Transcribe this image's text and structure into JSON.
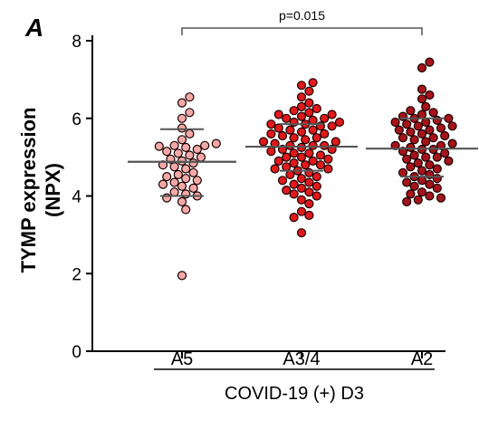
{
  "chart_data": {
    "type": "scatter",
    "panel_label": "A",
    "ylabel_line1": "TYMP expression",
    "ylabel_line2": "(NPX)",
    "xlabel": "COVID-19 (+) D3",
    "ylim": [
      0,
      8
    ],
    "yticks": [
      "0",
      "2",
      "4",
      "6",
      "8"
    ],
    "categories": [
      "A5",
      "A3/4",
      "A2"
    ],
    "significance": {
      "from": "A5",
      "to": "A2",
      "label": "p=0.015"
    },
    "colors": {
      "A5": "#f4a9a8",
      "A3/4": "#e0191c",
      "A2": "#a5141a",
      "line": "#555555"
    },
    "series": [
      {
        "group": "A5",
        "median": 4.88,
        "q1": 4.0,
        "q3": 5.72,
        "values": [
          6.55,
          6.4,
          6.15,
          6.0,
          5.75,
          5.6,
          5.45,
          5.35,
          5.3,
          5.3,
          5.28,
          5.25,
          5.2,
          5.15,
          5.1,
          5.05,
          5.0,
          4.95,
          4.9,
          4.85,
          4.8,
          4.75,
          4.7,
          4.6,
          4.55,
          4.5,
          4.45,
          4.4,
          4.35,
          4.3,
          4.25,
          4.2,
          4.1,
          4.05,
          4.0,
          3.95,
          3.85,
          3.65,
          1.95
        ]
      },
      {
        "group": "A3/4",
        "median": 5.27,
        "q1": 4.65,
        "q3": 5.85,
        "values": [
          6.92,
          6.85,
          6.7,
          6.55,
          6.4,
          6.3,
          6.25,
          6.2,
          6.15,
          6.1,
          6.1,
          6.05,
          6.0,
          6.0,
          5.95,
          5.9,
          5.9,
          5.85,
          5.85,
          5.8,
          5.8,
          5.75,
          5.7,
          5.7,
          5.65,
          5.6,
          5.6,
          5.55,
          5.5,
          5.5,
          5.45,
          5.4,
          5.4,
          5.35,
          5.3,
          5.3,
          5.3,
          5.25,
          5.2,
          5.2,
          5.15,
          5.1,
          5.1,
          5.05,
          5.0,
          5.0,
          4.95,
          4.9,
          4.9,
          4.85,
          4.8,
          4.8,
          4.75,
          4.7,
          4.7,
          4.65,
          4.6,
          4.55,
          4.5,
          4.45,
          4.4,
          4.35,
          4.3,
          4.25,
          4.2,
          4.15,
          4.1,
          4.05,
          4.0,
          3.9,
          3.8,
          3.6,
          3.5,
          3.45,
          3.05
        ]
      },
      {
        "group": "A2",
        "median": 5.22,
        "q1": 4.5,
        "q3": 6.0,
        "values": [
          7.45,
          7.3,
          6.75,
          6.6,
          6.5,
          6.3,
          6.2,
          6.15,
          6.1,
          6.05,
          6.0,
          6.0,
          5.95,
          5.9,
          5.9,
          5.85,
          5.8,
          5.8,
          5.75,
          5.7,
          5.7,
          5.65,
          5.6,
          5.55,
          5.5,
          5.5,
          5.45,
          5.4,
          5.35,
          5.3,
          5.3,
          5.25,
          5.2,
          5.2,
          5.15,
          5.1,
          5.05,
          5.0,
          5.0,
          4.95,
          4.9,
          4.85,
          4.8,
          4.75,
          4.7,
          4.65,
          4.6,
          4.55,
          4.5,
          4.45,
          4.4,
          4.35,
          4.3,
          4.25,
          4.2,
          4.1,
          4.05,
          4.0,
          3.95,
          3.9,
          3.85
        ]
      }
    ]
  }
}
